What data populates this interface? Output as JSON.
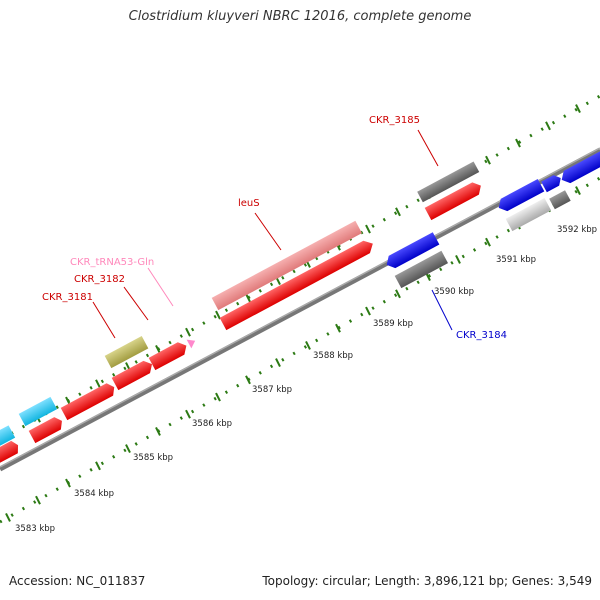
{
  "title": "Clostridium kluyveri NBRC 12016, complete genome",
  "footer": {
    "accession": "Accession: NC_011837",
    "summary": "Topology: circular; Length: 3,896,121 bp; Genes: 3,549"
  },
  "colors": {
    "backbone": "#777777",
    "tick": "#2c7a14",
    "protein_gene": "#ff0000",
    "protein_gene_light": "#ee8a8a",
    "rna_gene": "#ff99cc",
    "misc_olive": "#b5b05a",
    "misc_cyan": "#1ec7f0",
    "misc_blue": "#1010e0",
    "pseudo_dark": "#666666",
    "pseudo_light": "#cccccc"
  },
  "scale": {
    "unit": "kbp",
    "tick_labels": [
      "3583 kbp",
      "3584 kbp",
      "3585 kbp",
      "3586 kbp",
      "3587 kbp",
      "3588 kbp",
      "3589 kbp",
      "3590 kbp",
      "3591 kbp",
      "3592 kbp"
    ]
  },
  "gene_labels": [
    {
      "name": "CKR_3181",
      "color": "#cc0000"
    },
    {
      "name": "CKR_3182",
      "color": "#cc0000"
    },
    {
      "name": "CKR_tRNA53-Gln",
      "color": "#ff88bb"
    },
    {
      "name": "leuS",
      "color": "#cc0000"
    },
    {
      "name": "CKR_3185",
      "color": "#cc0000"
    },
    {
      "name": "CKR_3184",
      "color": "#0000cc"
    }
  ]
}
